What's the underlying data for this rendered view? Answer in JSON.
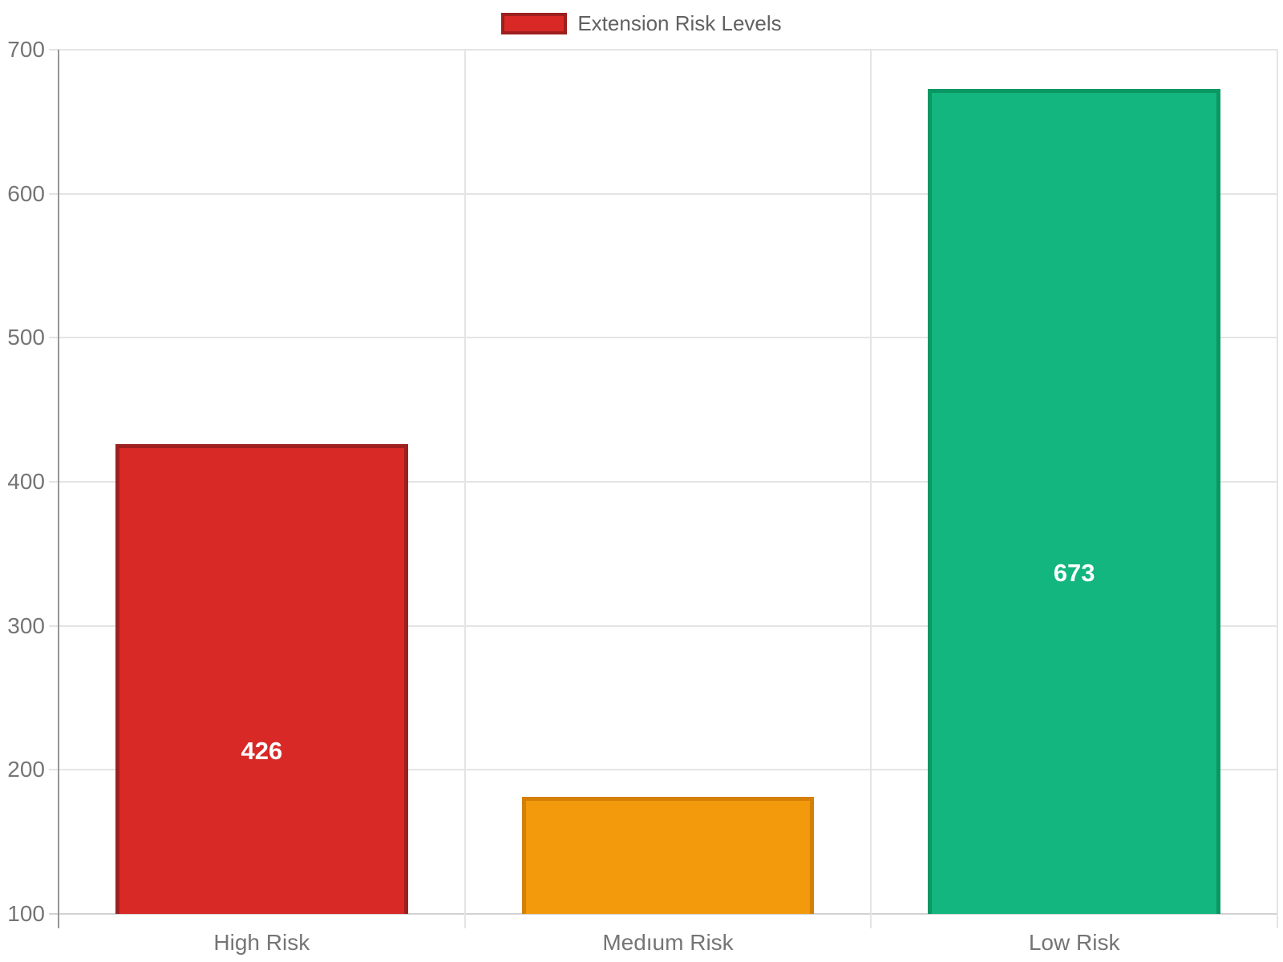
{
  "legend": {
    "label": "Extension Risk Levels"
  },
  "chart_data": {
    "type": "bar",
    "title": "",
    "series_name": "Extension Risk Levels",
    "categories": [
      "High Risk",
      "Medıum Risk",
      "Low Risk"
    ],
    "values": [
      426,
      181,
      673
    ],
    "value_labels": [
      "426",
      "",
      "673"
    ],
    "ylim": [
      100,
      700
    ],
    "yticks": [
      100,
      200,
      300,
      400,
      500,
      600,
      700
    ],
    "xlabel": "",
    "ylabel": "",
    "grid": true,
    "legend_position": "top",
    "bar_colors": [
      {
        "fill": "#d82927",
        "border": "#9d201f"
      },
      {
        "fill": "#f29a0b",
        "border": "#d67f06"
      },
      {
        "fill": "#12b67e",
        "border": "#0a9763"
      }
    ],
    "value_label_color": "#ffffff",
    "axis_text_color": "#757575",
    "gridline_color": "#e4e4e4",
    "x_axis_line_color": "#d2d2d2",
    "y_axis_line_color": "#969696"
  }
}
